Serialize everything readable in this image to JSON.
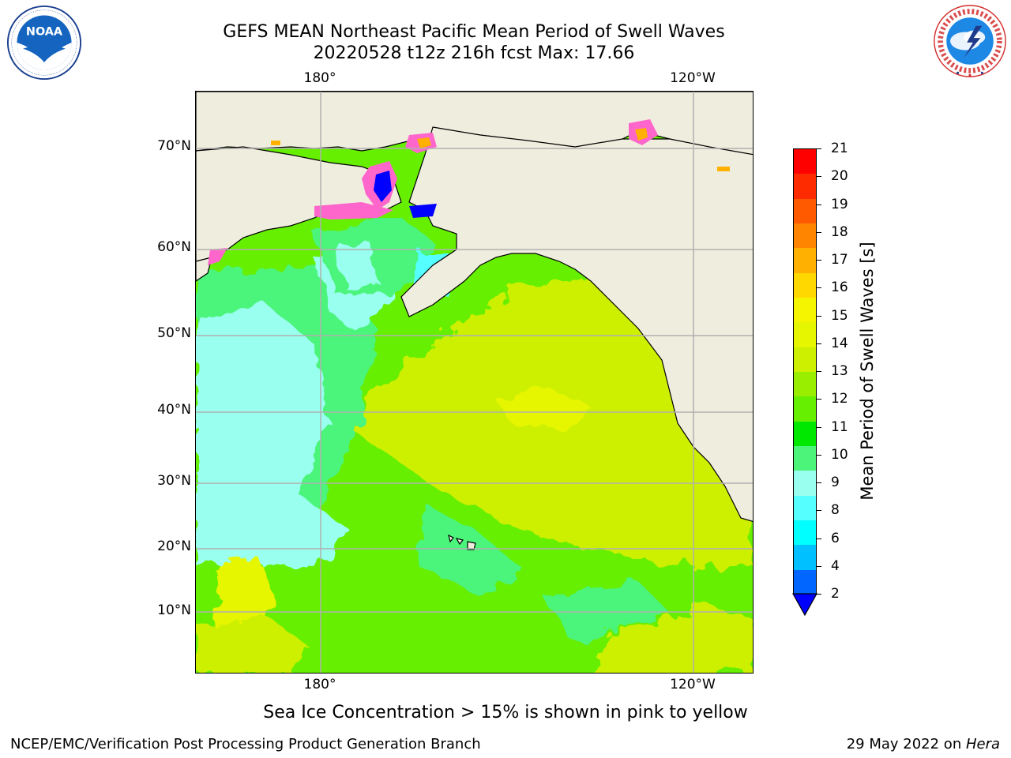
{
  "header": {
    "title_line1": "GEFS MEAN Northeast Pacific Mean Period of Swell Waves",
    "title_line2": "20220528 t12z 216h fcst   Max: 17.66"
  },
  "logos": {
    "left": {
      "text": "NOAA",
      "ring_text": "NATIONAL OCEANIC AND ATMOSPHERIC ADMINISTRATION · U.S. DEPARTMENT OF COMMERCE"
    },
    "right": {
      "ring_text": "NATIONAL WEATHER SERVICE"
    }
  },
  "map": {
    "lat_labels": [
      "70°N",
      "60°N",
      "50°N",
      "40°N",
      "30°N",
      "20°N",
      "10°N"
    ],
    "lon_top": [
      "180°",
      "120°W"
    ],
    "lon_bottom": [
      "180°",
      "120°W"
    ],
    "colors": {
      "land": "#efedde",
      "grid": "#b0b0b0",
      "coast": "#000000"
    }
  },
  "colorbar": {
    "title": "Mean Period of Swell Waves [s]",
    "labels": [
      "21",
      "20",
      "19",
      "18",
      "17",
      "16",
      "15",
      "14",
      "13",
      "12",
      "11",
      "10",
      "9",
      "8",
      "6",
      "4",
      "2"
    ],
    "colors_top_to_bottom": [
      "#ff0000",
      "#ff2b00",
      "#ff5a00",
      "#ff8500",
      "#ffb000",
      "#ffd800",
      "#f5f500",
      "#e6f500",
      "#ccf000",
      "#99ee00",
      "#66ef00",
      "#00e800",
      "#4cf47a",
      "#99ffee",
      "#55ffff",
      "#00ffff",
      "#00c0ff",
      "#0066ff"
    ],
    "extend_color": "#0000ff"
  },
  "caption": "Sea Ice Concentration > 15% is shown in pink to yellow",
  "footer": {
    "left": "NCEP/EMC/Verification Post Processing Product Generation Branch",
    "right_date": "29 May 2022 on ",
    "right_host": "Hera"
  }
}
